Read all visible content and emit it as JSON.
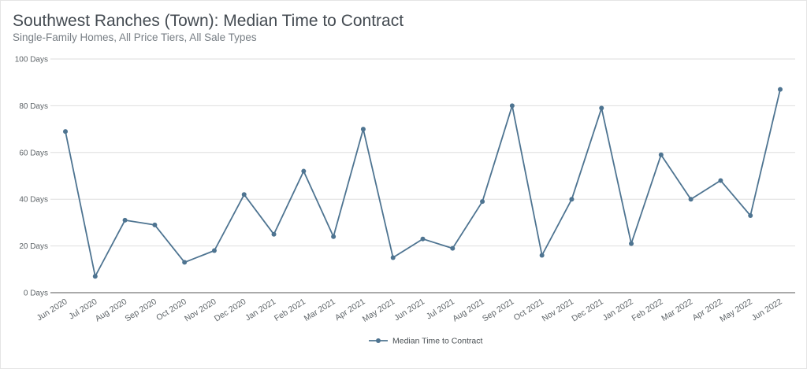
{
  "header": {
    "title": "Southwest Ranches (Town): Median Time to Contract",
    "subtitle": "Single-Family Homes, All Price Tiers, All Sale Types"
  },
  "chart_data": {
    "type": "line",
    "title": "Southwest Ranches (Town): Median Time to Contract",
    "subtitle": "Single-Family Homes, All Price Tiers, All Sale Types",
    "xlabel": "",
    "ylabel": "",
    "ylim": [
      0,
      100
    ],
    "yticks": [
      0,
      20,
      40,
      60,
      80,
      100
    ],
    "ytick_labels": [
      "0 Days",
      "20 Days",
      "40 Days",
      "60 Days",
      "80 Days",
      "100 Days"
    ],
    "grid": true,
    "legend_position": "bottom",
    "categories": [
      "Jun 2020",
      "Jul 2020",
      "Aug 2020",
      "Sep 2020",
      "Oct 2020",
      "Nov 2020",
      "Dec 2020",
      "Jan 2021",
      "Feb 2021",
      "Mar 2021",
      "Apr 2021",
      "May 2021",
      "Jun 2021",
      "Jul 2021",
      "Aug 2021",
      "Sep 2021",
      "Oct 2021",
      "Nov 2021",
      "Dec 2021",
      "Jan 2022",
      "Feb 2022",
      "Mar 2022",
      "Apr 2022",
      "May 2022",
      "Jun 2022"
    ],
    "series": [
      {
        "name": "Median Time to Contract",
        "color": "#4e7491",
        "values": [
          69,
          7,
          31,
          29,
          13,
          18,
          42,
          25,
          52,
          24,
          70,
          15,
          23,
          19,
          39,
          80,
          16,
          40,
          79,
          21,
          59,
          40,
          48,
          33,
          87
        ]
      }
    ]
  },
  "colors": {
    "line": "#4e7491",
    "grid": "#dedede",
    "axis": "#555555"
  }
}
